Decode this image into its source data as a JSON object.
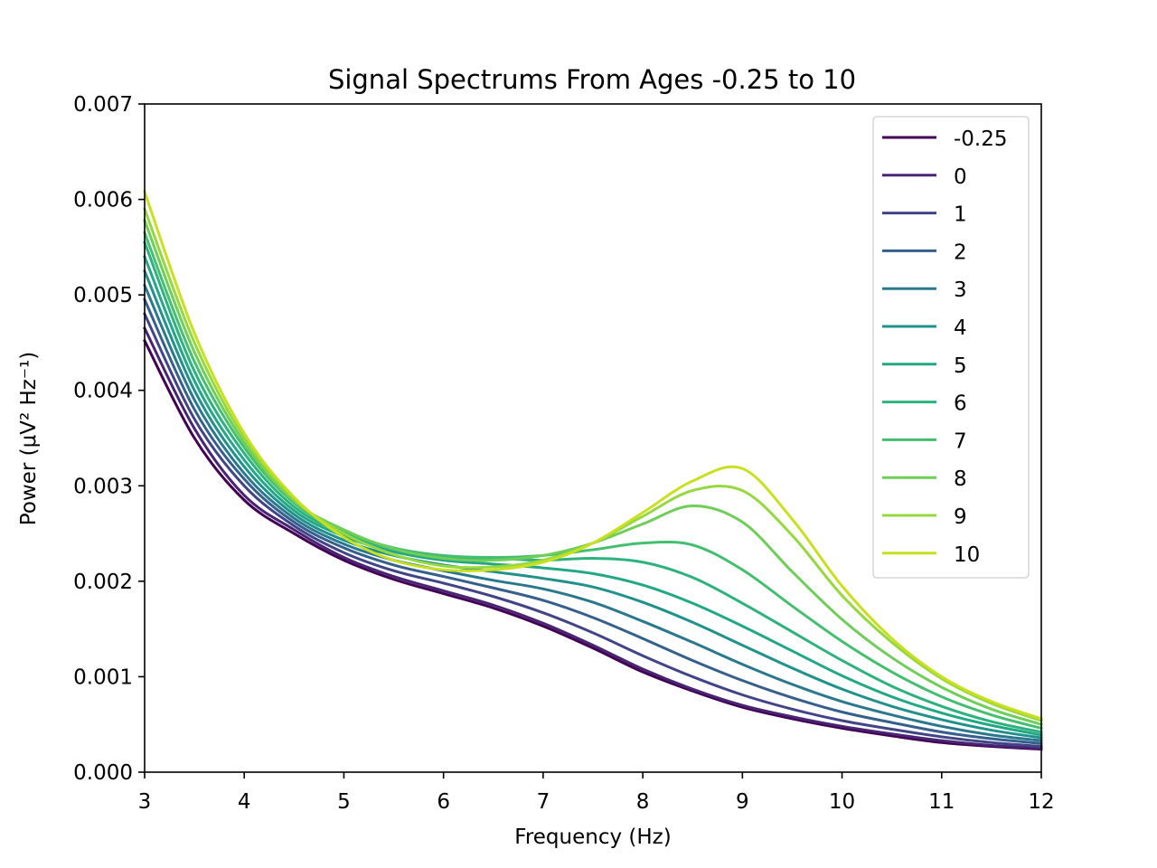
{
  "chart_data": {
    "type": "line",
    "title": "Signal Spectrums From Ages -0.25 to 10",
    "xlabel": "Frequency (Hz)",
    "ylabel": "Power (μV² Hz⁻¹)",
    "xlim": [
      3,
      12
    ],
    "ylim": [
      0,
      0.007
    ],
    "grid": false,
    "legend_position": "top-right",
    "x_ticks": [
      3,
      4,
      5,
      6,
      7,
      8,
      9,
      10,
      11,
      12
    ],
    "x_tick_labels": [
      "3",
      "4",
      "5",
      "6",
      "7",
      "8",
      "9",
      "10",
      "11",
      "12"
    ],
    "y_ticks": [
      0,
      0.001,
      0.002,
      0.003,
      0.004,
      0.005,
      0.006,
      0.007
    ],
    "y_tick_labels": [
      "0.000",
      "0.001",
      "0.002",
      "0.003",
      "0.004",
      "0.005",
      "0.006",
      "0.007"
    ],
    "x": [
      3,
      3.5,
      4,
      4.5,
      5,
      5.5,
      6,
      6.5,
      7,
      7.5,
      8,
      8.5,
      9,
      9.5,
      10,
      10.5,
      11,
      11.5,
      12
    ],
    "series": [
      {
        "name": "-0.25",
        "color": "#440154",
        "values": [
          0.00452,
          0.0035,
          0.00285,
          0.0025,
          0.00222,
          0.00202,
          0.00187,
          0.00172,
          0.00153,
          0.0013,
          0.00105,
          0.00085,
          0.00068,
          0.00056,
          0.00046,
          0.00038,
          0.00031,
          0.00027,
          0.00024
        ]
      },
      {
        "name": "0",
        "color": "#482475",
        "values": [
          0.00465,
          0.0036,
          0.0029,
          0.00254,
          0.00225,
          0.00205,
          0.0019,
          0.00175,
          0.00156,
          0.00133,
          0.00108,
          0.00087,
          0.0007,
          0.00058,
          0.00048,
          0.0004,
          0.00033,
          0.00028,
          0.00025
        ]
      },
      {
        "name": "1",
        "color": "#414487",
        "values": [
          0.0048,
          0.0037,
          0.003,
          0.00258,
          0.0023,
          0.00211,
          0.00198,
          0.00184,
          0.00167,
          0.00146,
          0.00122,
          0.001,
          0.00081,
          0.00066,
          0.00054,
          0.00045,
          0.00037,
          0.00031,
          0.00027
        ]
      },
      {
        "name": "2",
        "color": "#355f8d",
        "values": [
          0.00495,
          0.0038,
          0.00307,
          0.00262,
          0.00235,
          0.00217,
          0.00205,
          0.00193,
          0.0018,
          0.00162,
          0.0014,
          0.00117,
          0.00096,
          0.00078,
          0.00063,
          0.00052,
          0.00042,
          0.00035,
          0.0003
        ]
      },
      {
        "name": "3",
        "color": "#2a788e",
        "values": [
          0.0051,
          0.0039,
          0.00313,
          0.00266,
          0.00239,
          0.00222,
          0.00211,
          0.00201,
          0.00192,
          0.00178,
          0.00158,
          0.00136,
          0.00113,
          0.00092,
          0.00074,
          0.0006,
          0.00048,
          0.00039,
          0.00033
        ]
      },
      {
        "name": "4",
        "color": "#21918c",
        "values": [
          0.00525,
          0.004,
          0.0032,
          0.0027,
          0.00243,
          0.00227,
          0.00217,
          0.0021,
          0.00203,
          0.00194,
          0.00178,
          0.00157,
          0.00133,
          0.00109,
          0.00087,
          0.00069,
          0.00055,
          0.00044,
          0.00036
        ]
      },
      {
        "name": "5",
        "color": "#22a884",
        "values": [
          0.0054,
          0.0041,
          0.00327,
          0.00274,
          0.00247,
          0.00231,
          0.00222,
          0.00218,
          0.00214,
          0.00208,
          0.00196,
          0.00177,
          0.00153,
          0.00127,
          0.00101,
          0.00079,
          0.00062,
          0.00049,
          0.00039
        ]
      },
      {
        "name": "6",
        "color": "#2db27d",
        "values": [
          0.00555,
          0.0042,
          0.00334,
          0.00278,
          0.0025,
          0.00234,
          0.00226,
          0.00224,
          0.00222,
          0.00224,
          0.0022,
          0.00204,
          0.00177,
          0.00147,
          0.00117,
          0.0009,
          0.00069,
          0.00053,
          0.00042
        ]
      },
      {
        "name": "7",
        "color": "#44bf70",
        "values": [
          0.00565,
          0.0043,
          0.0034,
          0.00282,
          0.00252,
          0.00235,
          0.00227,
          0.00225,
          0.00227,
          0.00233,
          0.0024,
          0.00238,
          0.00212,
          0.00174,
          0.00137,
          0.00105,
          0.00079,
          0.0006,
          0.00046
        ]
      },
      {
        "name": "8",
        "color": "#6ece58",
        "values": [
          0.00578,
          0.0044,
          0.00345,
          0.00284,
          0.00254,
          0.00234,
          0.00224,
          0.00222,
          0.00227,
          0.0024,
          0.0026,
          0.00279,
          0.00262,
          0.0021,
          0.0016,
          0.0012,
          0.00089,
          0.00066,
          0.0005
        ]
      },
      {
        "name": "9",
        "color": "#95d840",
        "values": [
          0.0059,
          0.0045,
          0.0035,
          0.00286,
          0.0025,
          0.00228,
          0.00216,
          0.00215,
          0.00222,
          0.0024,
          0.00268,
          0.00295,
          0.00295,
          0.00248,
          0.00185,
          0.00136,
          0.00098,
          0.00072,
          0.00054
        ]
      },
      {
        "name": "10",
        "color": "#c8e020",
        "values": [
          0.00608,
          0.0046,
          0.00355,
          0.00288,
          0.00246,
          0.00222,
          0.00212,
          0.00212,
          0.0022,
          0.0024,
          0.00272,
          0.00305,
          0.00318,
          0.00265,
          0.00195,
          0.0014,
          0.001,
          0.00074,
          0.00056
        ]
      }
    ]
  }
}
